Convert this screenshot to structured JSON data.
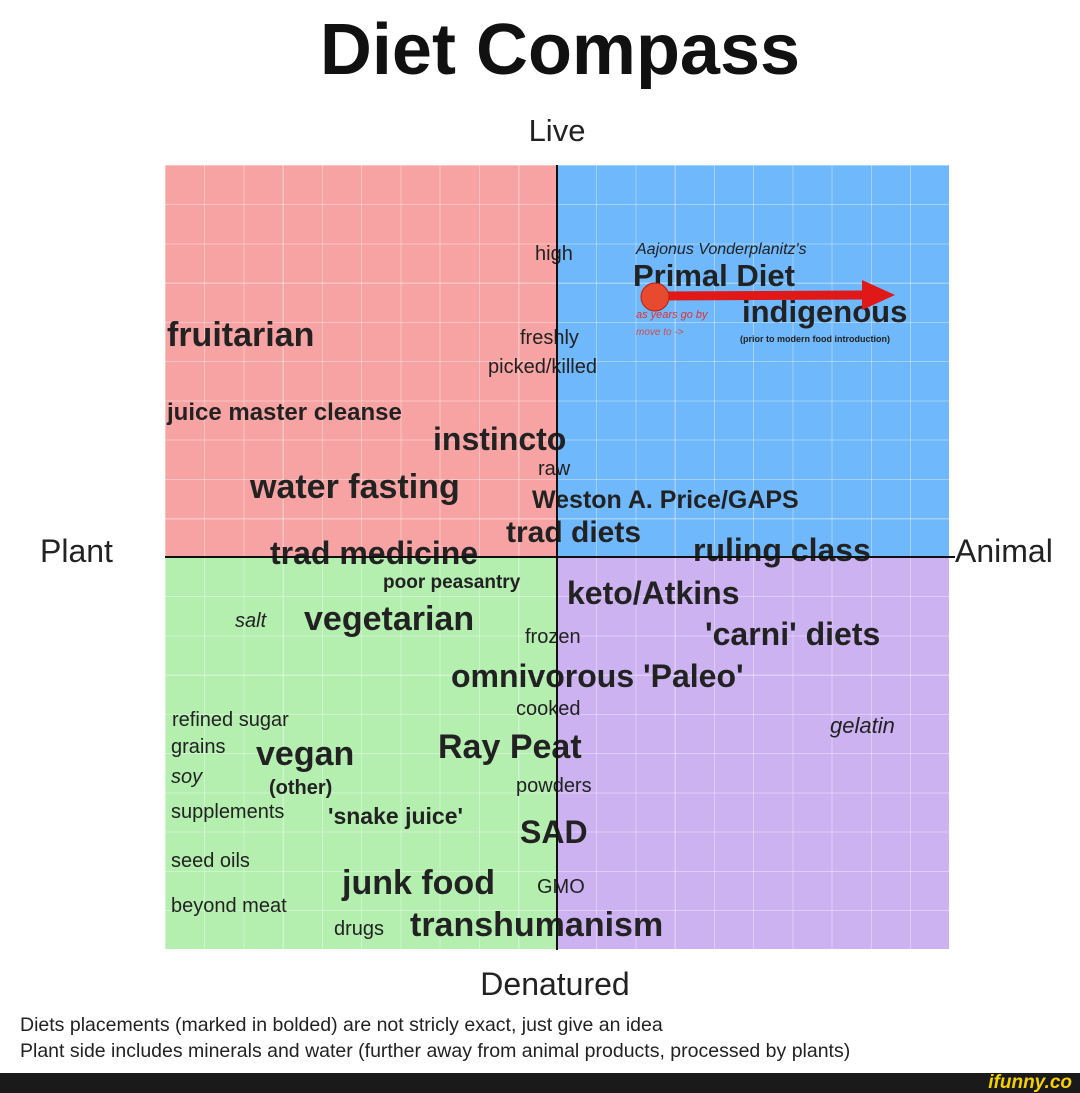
{
  "title": "Diet Compass",
  "axes": {
    "top": "Live",
    "bottom": "Denatured",
    "left": "Plant",
    "right": "Animal"
  },
  "labels": [
    "high",
    "Aajonus Vonderplanitz's",
    "Primal Diet",
    "indigenous",
    "as years go by",
    "move to ->",
    "(prior to modern food introduction)",
    "fruitarian",
    "freshly",
    "picked/killed",
    "juice master cleanse",
    "instincto",
    "raw",
    "water fasting",
    "Weston A. Price/GAPS",
    "trad diets",
    "ruling class",
    "trad medicine",
    "poor peasantry",
    "keto/Atkins",
    "salt",
    "vegetarian",
    "frozen",
    "'carni' diets",
    "omnivorous 'Paleo'",
    "cooked",
    "gelatin",
    "refined sugar",
    "grains",
    "vegan",
    "Ray Peat",
    "soy",
    "(other)",
    "powders",
    "supplements",
    "'snake juice'",
    "SAD",
    "seed oils",
    "junk food",
    "GMO",
    "beyond meat",
    "drugs",
    "transhumanism"
  ],
  "notes": [
    "Diets placements (marked in bolded) are not stricly exact, just give an idea",
    "Plant side includes minerals and water (further away from animal products, processed by plants)"
  ],
  "watermark": "ifunny.co"
}
